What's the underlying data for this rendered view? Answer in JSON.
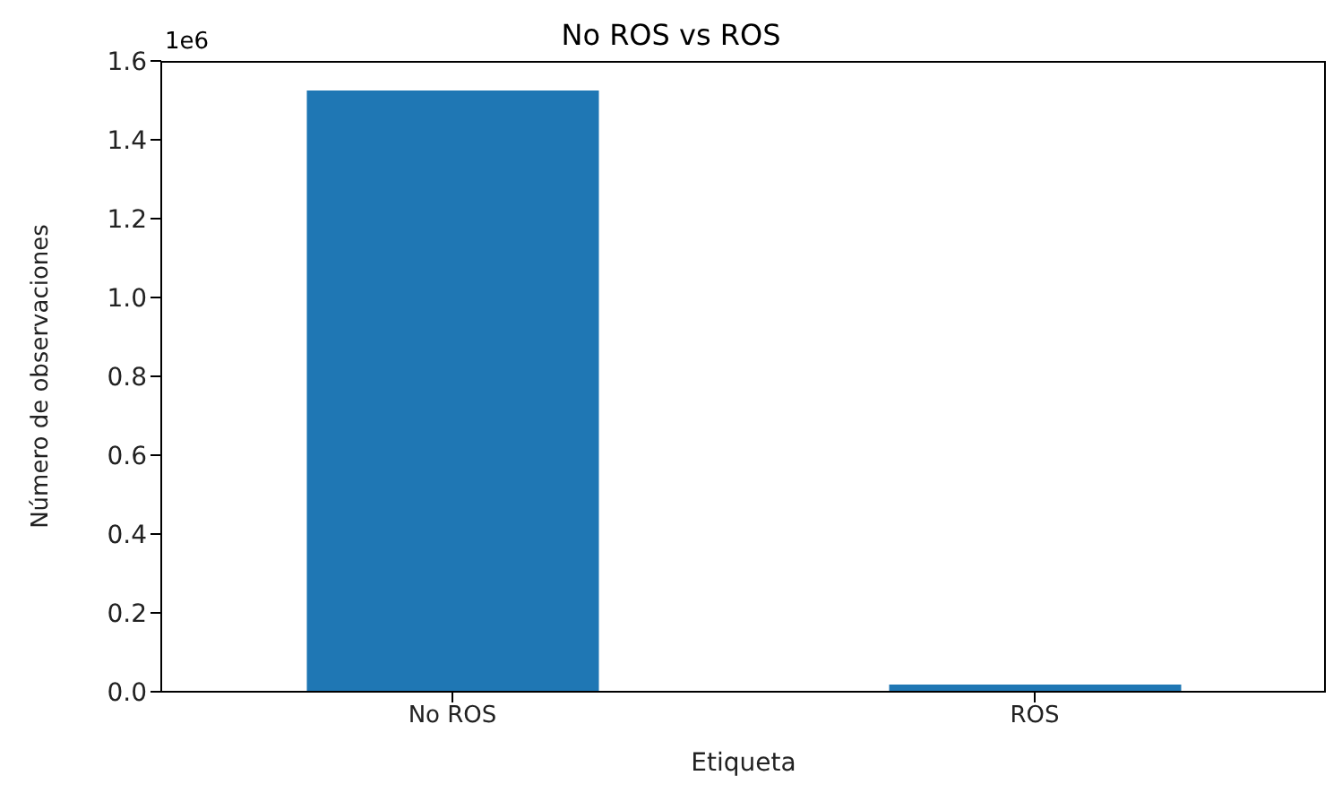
{
  "chart_data": {
    "type": "bar",
    "title": "No ROS vs ROS",
    "xlabel": "Etiqueta",
    "ylabel": "Número de observaciones",
    "annotations": [
      "1e6"
    ],
    "categories": [
      "No ROS",
      "ROS"
    ],
    "values": [
      1.525,
      0.018
    ],
    "color": "#1f77b4",
    "ylim": [
      0,
      1.6
    ],
    "yticks": [
      {
        "value": 0,
        "label": "0.0"
      },
      {
        "value": 0.2,
        "label": "0.2"
      },
      {
        "value": 0.4,
        "label": "0.4"
      },
      {
        "value": 0.6,
        "label": "0.6"
      },
      {
        "value": 0.8,
        "label": "0.8"
      },
      {
        "value": 1,
        "label": "1.0"
      },
      {
        "value": 1.2,
        "label": "1.2"
      },
      {
        "value": 1.4,
        "label": "1.4"
      },
      {
        "value": 1.6,
        "label": "1.6"
      }
    ],
    "grid": false
  }
}
